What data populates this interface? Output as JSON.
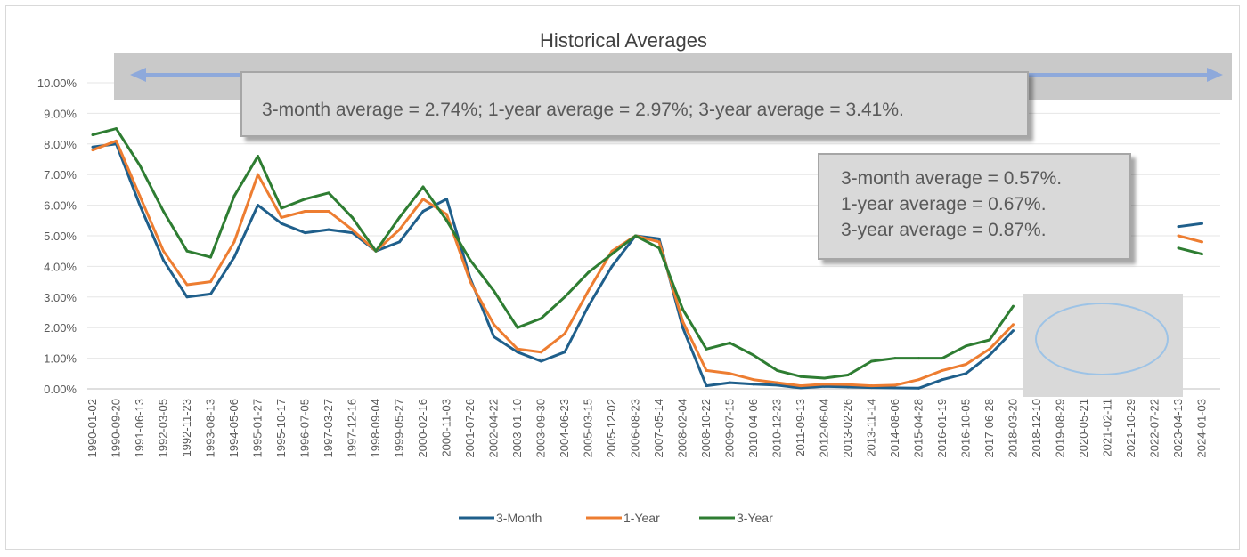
{
  "colors": {
    "3_month": "#1f5f8b",
    "1_year": "#ed7d31",
    "3_year": "#2e7d32",
    "arrow_band": "#c9c9c9",
    "arrow": "#8ea9db",
    "gridline": "#e6e6e6"
  },
  "callouts": {
    "period_1": "3-month average = 2.74%; 1-year average = 2.97%; 3-year average = 3.41%.",
    "period_2": {
      "line1": "3-month average = 0.57%.",
      "line2": "1-year average = 0.67%.",
      "line3": "3-year average = 0.87%."
    }
  },
  "chart_data": {
    "type": "line",
    "title": "Historical Averages",
    "xlabel": "",
    "ylabel": "",
    "ylim": [
      0,
      10
    ],
    "y_ticks": [
      "0.00%",
      "1.00%",
      "2.00%",
      "3.00%",
      "4.00%",
      "5.00%",
      "6.00%",
      "7.00%",
      "8.00%",
      "9.00%",
      "10.00%"
    ],
    "grid": true,
    "legend": "bottom",
    "categories": [
      "1990-01-02",
      "1990-09-20",
      "1991-06-13",
      "1992-03-05",
      "1992-11-23",
      "1993-08-13",
      "1994-05-06",
      "1995-01-27",
      "1995-10-17",
      "1996-07-05",
      "1997-03-27",
      "1997-12-16",
      "1998-09-04",
      "1999-05-27",
      "2000-02-16",
      "2000-11-03",
      "2001-07-26",
      "2002-04-22",
      "2003-01-10",
      "2003-09-30",
      "2004-06-23",
      "2005-03-15",
      "2005-12-02",
      "2006-08-23",
      "2007-05-14",
      "2008-02-04",
      "2008-10-22",
      "2009-07-15",
      "2010-04-06",
      "2010-12-23",
      "2011-09-13",
      "2012-06-04",
      "2013-02-26",
      "2013-11-14",
      "2014-08-06",
      "2015-04-28",
      "2016-01-19",
      "2016-10-05",
      "2017-06-28",
      "2018-03-20",
      "2018-12-10",
      "2019-08-29",
      "2020-05-21",
      "2021-02-11",
      "2021-10-29",
      "2022-07-22",
      "2023-04-13",
      "2024-01-03"
    ],
    "series": [
      {
        "name": "3-Month",
        "values": [
          7.9,
          8.0,
          6.0,
          4.2,
          3.0,
          3.1,
          4.3,
          6.0,
          5.4,
          5.1,
          5.2,
          5.1,
          4.5,
          4.8,
          5.8,
          6.2,
          3.6,
          1.7,
          1.2,
          0.9,
          1.2,
          2.7,
          4.0,
          5.0,
          4.9,
          2.0,
          0.1,
          0.2,
          0.15,
          0.12,
          0.03,
          0.08,
          0.06,
          0.04,
          0.03,
          0.02,
          0.3,
          0.5,
          1.1,
          1.9,
          null,
          null,
          null,
          null,
          null,
          null,
          5.3,
          5.4
        ]
      },
      {
        "name": "1-Year",
        "values": [
          7.8,
          8.1,
          6.3,
          4.5,
          3.4,
          3.5,
          4.8,
          7.0,
          5.6,
          5.8,
          5.8,
          5.2,
          4.5,
          5.2,
          6.2,
          5.7,
          3.5,
          2.1,
          1.3,
          1.2,
          1.8,
          3.2,
          4.5,
          5.0,
          4.8,
          2.2,
          0.6,
          0.5,
          0.3,
          0.2,
          0.1,
          0.15,
          0.14,
          0.1,
          0.12,
          0.3,
          0.6,
          0.8,
          1.3,
          2.1,
          null,
          null,
          null,
          null,
          null,
          null,
          5.0,
          4.8
        ]
      },
      {
        "name": "3-Year",
        "values": [
          8.3,
          8.5,
          7.3,
          5.8,
          4.5,
          4.3,
          6.3,
          7.6,
          5.9,
          6.2,
          6.4,
          5.6,
          4.5,
          5.6,
          6.6,
          5.5,
          4.2,
          3.2,
          2.0,
          2.3,
          3.0,
          3.8,
          4.4,
          5.0,
          4.6,
          2.6,
          1.3,
          1.5,
          1.1,
          0.6,
          0.4,
          0.35,
          0.45,
          0.9,
          1.0,
          1.0,
          1.0,
          1.4,
          1.6,
          2.7,
          null,
          null,
          null,
          null,
          null,
          null,
          4.6,
          4.4
        ]
      }
    ]
  }
}
